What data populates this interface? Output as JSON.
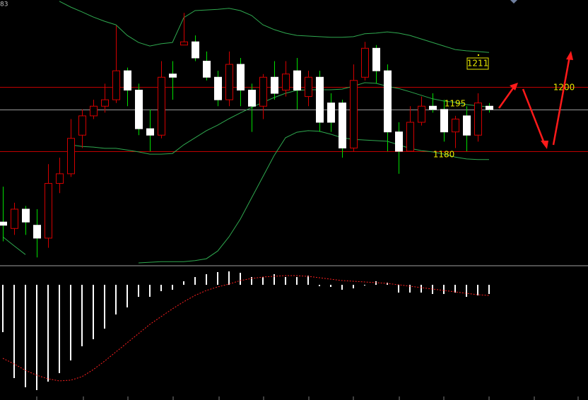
{
  "chart_data": {
    "type": "candlestick",
    "corner_label": "83",
    "ylim": [
      1145.3,
      1227
    ],
    "open": [
      1158,
      1156,
      1162,
      1157,
      1153,
      1170,
      1173,
      1185,
      1191,
      1194,
      1196,
      1205,
      1199,
      1187,
      1185,
      1204,
      1213,
      1214,
      1208,
      1203,
      1196,
      1207,
      1199,
      1194,
      1203,
      1199,
      1205,
      1197,
      1203,
      1195,
      1195,
      1181,
      1203,
      1212,
      1205,
      1186,
      1180,
      1189,
      1194,
      1193,
      1186,
      1191,
      1185,
      1194
    ],
    "high": [
      1169,
      1164,
      1163,
      1162,
      1176,
      1178,
      1190,
      1193,
      1196,
      1201,
      1219,
      1206,
      1201,
      1193,
      1208,
      1208,
      1223,
      1216,
      1211,
      1205,
      1211,
      1209,
      1201,
      1204,
      1208,
      1208,
      1209,
      1205,
      1205,
      1198,
      1196,
      1207,
      1214,
      1213,
      1207,
      1189,
      1194,
      1197,
      1198,
      1196,
      1191,
      1194,
      1198,
      1195
    ],
    "low": [
      1152,
      1154,
      1154,
      1147,
      1150,
      1167,
      1172,
      1181,
      1190,
      1192,
      1195,
      1194,
      1185,
      1180,
      1184,
      1196,
      1213,
      1208,
      1202,
      1194,
      1194,
      1194,
      1186,
      1190,
      1196,
      1197,
      1193,
      1194,
      1186,
      1186,
      1178,
      1180,
      1202,
      1201,
      1180,
      1173,
      1180,
      1188,
      1192,
      1183,
      1181,
      1180,
      1183,
      1192
    ],
    "close": [
      1157,
      1162,
      1158,
      1153,
      1170,
      1173,
      1184,
      1191,
      1194,
      1196,
      1205,
      1199,
      1187,
      1185,
      1203,
      1203,
      1214,
      1209,
      1203,
      1196,
      1207,
      1199,
      1194,
      1203,
      1198,
      1204,
      1199,
      1203,
      1189,
      1189,
      1181,
      1202,
      1212,
      1205,
      1186,
      1180,
      1189,
      1194,
      1193,
      1186,
      1190,
      1185,
      1195,
      1193
    ],
    "up_color": "#d40000",
    "down_color": "#ffffff",
    "down_wick_color": "#00e000",
    "bands": {
      "color": "#2fa84f",
      "upper": [
        null,
        null,
        null,
        null,
        null,
        1226.6,
        1224.8,
        1223.3,
        1221.7,
        1220.4,
        1219.3,
        1216.0,
        1213.8,
        1212.7,
        1213.4,
        1213.8,
        1221.5,
        1223.7,
        1223.9,
        1224.1,
        1224.4,
        1223.7,
        1222.2,
        1219.3,
        1217.8,
        1216.7,
        1216.0,
        1215.8,
        1215.6,
        1215.4,
        1215.4,
        1215.6,
        1216.5,
        1216.7,
        1217.1,
        1216.7,
        1216.0,
        1214.9,
        1213.8,
        1212.7,
        1211.6,
        1211.2,
        1211.0,
        1210.7
      ],
      "middle": [
        null,
        null,
        null,
        null,
        null,
        null,
        1182.0,
        1181.5,
        1181.3,
        1180.9,
        1180.9,
        1180.4,
        1179.8,
        1179.1,
        1179.1,
        1179.3,
        1182.0,
        1184.2,
        1186.4,
        1188.1,
        1190.1,
        1191.9,
        1193.6,
        1195.2,
        1196.7,
        1198.0,
        1198.9,
        1199.1,
        1199.1,
        1199.1,
        1199.3,
        1200.2,
        1201.3,
        1201.1,
        1200.2,
        1199.5,
        1198.5,
        1197.4,
        1196.3,
        1195.6,
        1195.2,
        1194.5,
        1194.1,
        1193.8
      ],
      "lower": [
        1153.4,
        1150.6,
        1147.9,
        null,
        null,
        null,
        null,
        null,
        null,
        null,
        null,
        null,
        1145.3,
        1145.5,
        1145.7,
        1145.7,
        1145.7,
        1146.0,
        1146.6,
        1149.0,
        1153.4,
        1158.9,
        1165.5,
        1172.1,
        1178.7,
        1184.2,
        1185.9,
        1186.4,
        1186.2,
        1185.3,
        1184.2,
        1183.7,
        1183.5,
        1183.3,
        1183.1,
        1182.0,
        1180.9,
        1180.2,
        1179.8,
        1179.1,
        1178.2,
        1177.6,
        1177.4,
        1177.4
      ]
    },
    "levels": [
      {
        "value": 1200,
        "color": "#c00000"
      },
      {
        "value": 1193,
        "color": "#9a9a9a"
      },
      {
        "value": 1180,
        "color": "#c00000"
      }
    ],
    "level_labels": [
      "1211",
      "1195",
      "1200",
      "1180"
    ],
    "label_color": "#e8e800",
    "oscillator": {
      "ylim": [
        -163,
        27
      ],
      "color": "#ffffff",
      "values": [
        -67,
        -132,
        -145,
        -149,
        -137,
        -125,
        -107,
        -87,
        -77,
        -62,
        -42,
        -32,
        -17,
        -17,
        -9,
        -7,
        5,
        11,
        15,
        18,
        19,
        17,
        11,
        11,
        15,
        11,
        11,
        13,
        -2,
        -3,
        -7,
        -5,
        -1,
        5,
        3,
        -11,
        -11,
        -11,
        -13,
        -13,
        -11,
        -17,
        -15,
        -13
      ],
      "signal_color": "#ff2020",
      "signal": [
        -104,
        -112,
        -121,
        -128,
        -133,
        -136,
        -135,
        -130,
        -120,
        -108,
        -95,
        -82,
        -69,
        -56,
        -45,
        -34,
        -24,
        -15,
        -8,
        -3,
        1,
        6,
        9,
        11,
        12,
        13,
        13,
        12,
        10,
        8,
        6,
        5,
        4,
        3,
        2,
        0,
        -2,
        -4,
        -6,
        -8,
        -10,
        -12,
        -14,
        -15
      ]
    }
  }
}
